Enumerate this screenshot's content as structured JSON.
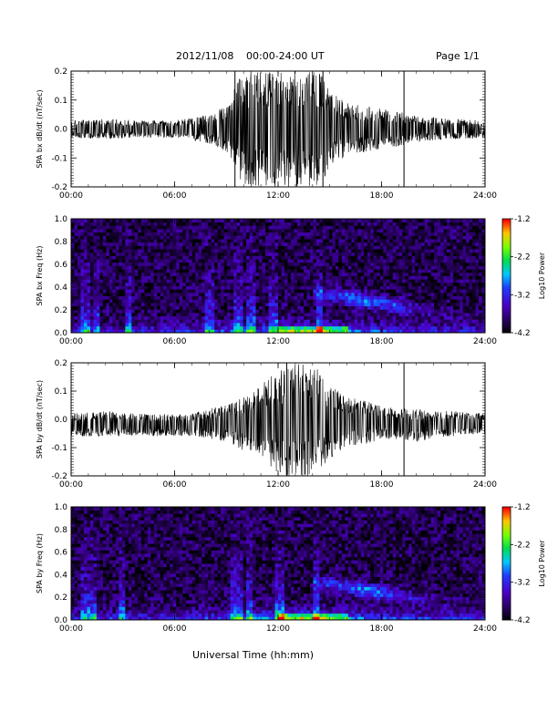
{
  "header": {
    "date": "2012/11/08",
    "range": "00:00-24:00 UT",
    "page": "Page 1/1"
  },
  "xlabel": "Universal Time (hh:mm)",
  "chart_data": [
    {
      "type": "line",
      "ylabel": "SPA bx dB/dt (nT/sec)",
      "xticks": [
        "00:00",
        "06:00",
        "12:00",
        "18:00",
        "24:00"
      ],
      "yticks": [
        "-0.2",
        "-0.1",
        "0.0",
        "0.1",
        "0.2"
      ],
      "xlim": [
        0,
        24
      ],
      "ylim": [
        -0.2,
        0.2
      ],
      "x_unit": "hours UT",
      "series": [
        {
          "x": [
            0,
            2,
            4,
            6,
            7,
            8,
            9,
            9.5,
            10,
            11,
            12,
            13,
            14,
            14.5,
            15,
            16,
            17,
            18,
            19,
            20,
            22,
            24
          ],
          "upper": [
            0.03,
            0.035,
            0.03,
            0.03,
            0.04,
            0.05,
            0.08,
            0.15,
            0.2,
            0.2,
            0.2,
            0.2,
            0.2,
            0.2,
            0.13,
            0.09,
            0.08,
            0.07,
            0.06,
            0.045,
            0.035,
            0.03
          ],
          "lower": [
            -0.03,
            -0.035,
            -0.03,
            -0.03,
            -0.04,
            -0.05,
            -0.08,
            -0.13,
            -0.2,
            -0.2,
            -0.2,
            -0.2,
            -0.2,
            -0.2,
            -0.13,
            -0.09,
            -0.08,
            -0.07,
            -0.06,
            -0.045,
            -0.035,
            -0.03
          ]
        }
      ],
      "spikes": [
        9.5,
        14.6,
        19.3
      ]
    },
    {
      "type": "heatmap",
      "ylabel": "SPA bx Freq (Hz)",
      "xticks": [
        "00:00",
        "06:00",
        "12:00",
        "18:00",
        "24:00"
      ],
      "yticks": [
        "0.0",
        "0.2",
        "0.4",
        "0.6",
        "0.8",
        "1.0"
      ],
      "xlim": [
        0,
        24
      ],
      "ylim": [
        0,
        1.0
      ],
      "colorbar": {
        "label": "Log10 Power",
        "ticks": [
          "-1.2",
          "-2.2",
          "-3.2",
          "-4.2"
        ],
        "range": [
          -4.2,
          -1.2
        ]
      },
      "features": {
        "background": -3.9,
        "low_freq_band": -2.6,
        "band_16_19_peak_hz": 0.3,
        "vertical_streaks_hours": [
          0.8,
          1.5,
          3.3,
          8.0,
          9.7,
          10.4,
          11.7,
          14.4
        ]
      }
    },
    {
      "type": "line",
      "ylabel": "SPA by dB/dt (nT/sec)",
      "xticks": [
        "00:00",
        "06:00",
        "12:00",
        "18:00",
        "24:00"
      ],
      "yticks": [
        "-0.2",
        "-0.1",
        "0.0",
        "0.1",
        "0.2"
      ],
      "xlim": [
        0,
        24
      ],
      "ylim": [
        -0.2,
        0.2
      ],
      "x_unit": "hours UT",
      "series": [
        {
          "x": [
            0,
            2,
            4,
            6,
            7,
            8,
            9,
            10,
            11,
            11.5,
            12,
            13,
            14,
            15,
            16,
            17,
            18,
            19,
            20,
            22,
            24
          ],
          "upper": [
            0.02,
            0.03,
            0.02,
            0.02,
            0.02,
            0.04,
            0.05,
            0.08,
            0.12,
            0.15,
            0.17,
            0.2,
            0.2,
            0.12,
            0.08,
            0.07,
            0.05,
            0.04,
            0.035,
            0.03,
            0.02
          ],
          "lower": [
            -0.06,
            -0.06,
            -0.06,
            -0.06,
            -0.06,
            -0.07,
            -0.08,
            -0.11,
            -0.13,
            -0.16,
            -0.2,
            -0.2,
            -0.2,
            -0.14,
            -0.1,
            -0.09,
            -0.07,
            -0.07,
            -0.08,
            -0.06,
            -0.05
          ]
        }
      ],
      "spikes": [
        12.5,
        19.3
      ]
    },
    {
      "type": "heatmap",
      "ylabel": "SPA by Freq (Hz)",
      "xticks": [
        "00:00",
        "06:00",
        "12:00",
        "18:00",
        "24:00"
      ],
      "yticks": [
        "0.0",
        "0.2",
        "0.4",
        "0.6",
        "0.8",
        "1.0"
      ],
      "xlim": [
        0,
        24
      ],
      "ylim": [
        0,
        1.0
      ],
      "colorbar": {
        "label": "Log10 Power",
        "ticks": [
          "-1.2",
          "-2.2",
          "-3.2",
          "-4.2"
        ],
        "range": [
          -4.2,
          -1.2
        ]
      },
      "features": {
        "background": -3.9,
        "low_freq_band": -2.5,
        "band_16_19_peak_hz": 0.28,
        "vertical_streaks_hours": [
          0.7,
          1.2,
          3.0,
          9.4,
          9.8,
          10.3,
          12.1,
          14.2
        ]
      }
    }
  ]
}
